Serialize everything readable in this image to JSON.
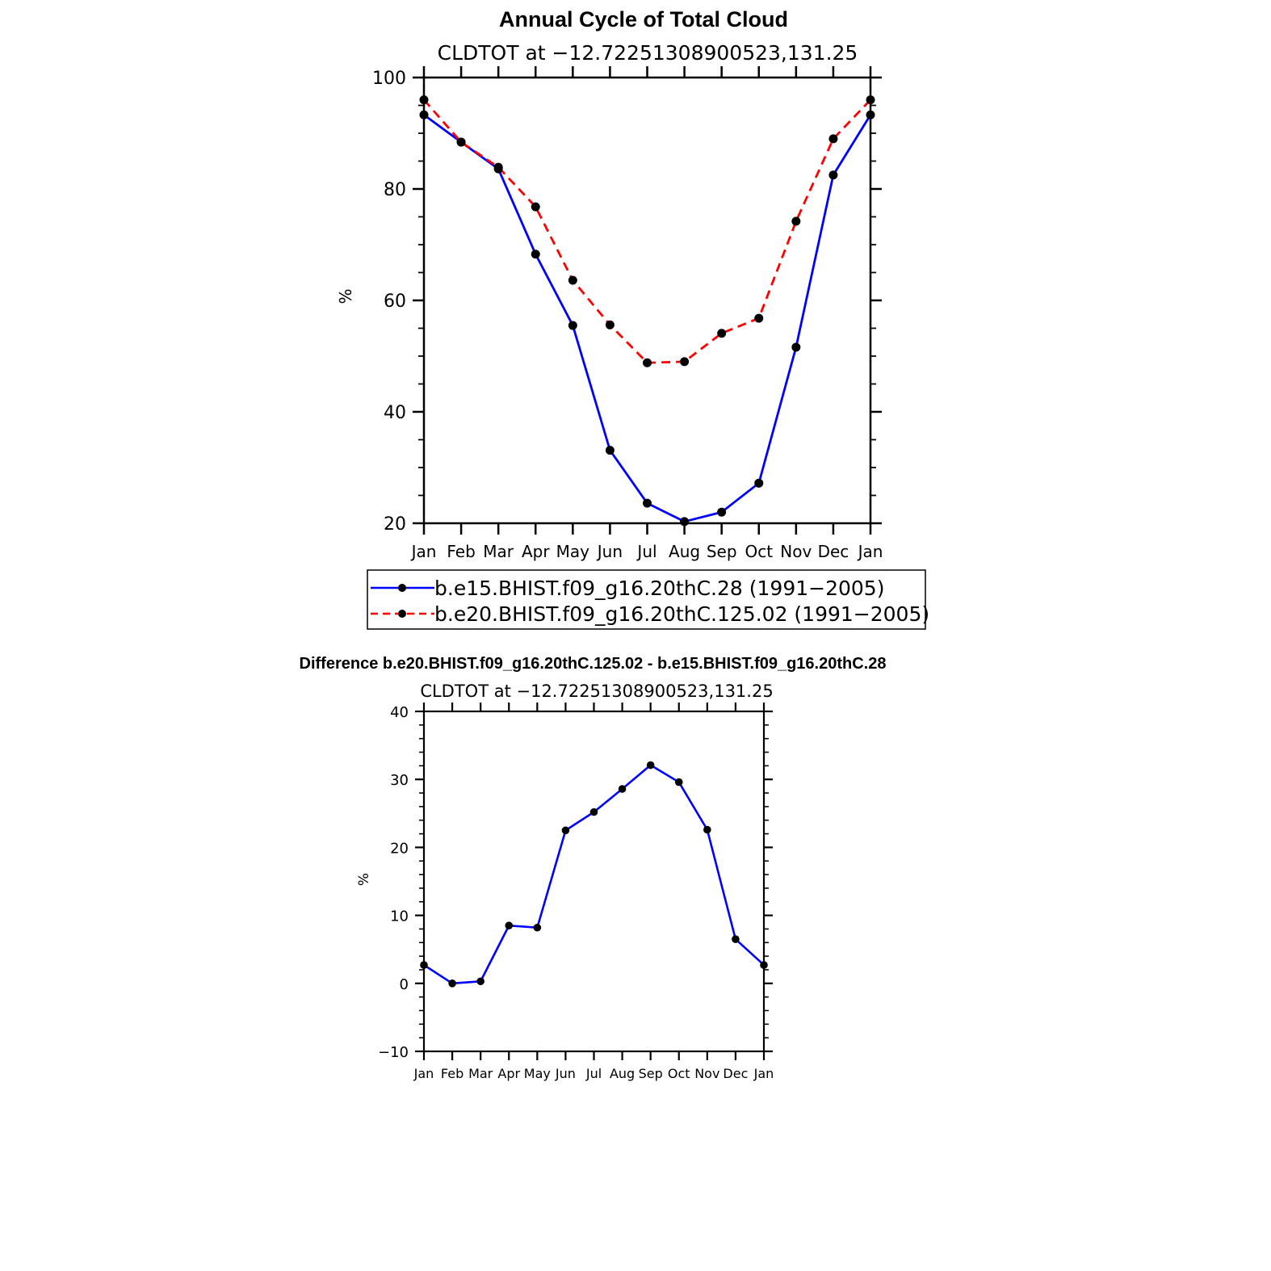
{
  "chart_data": [
    {
      "type": "line",
      "title": "Annual Cycle of Total Cloud",
      "subtitle": "CLDTOT at −12.72251308900523,131.25",
      "ylabel": "%",
      "ylim": [
        20,
        100
      ],
      "yticks": [
        "100",
        "80",
        "60",
        "40",
        "20"
      ],
      "categories": [
        "Jan",
        "Feb",
        "Mar",
        "Apr",
        "May",
        "Jun",
        "Jul",
        "Aug",
        "Sep",
        "Oct",
        "Nov",
        "Dec",
        "Jan"
      ],
      "series": [
        {
          "name": "b.e15.BHIST.f09_g16.20thC.28 (1991−2005)",
          "color": "#0000ff",
          "dash": "solid",
          "values": [
            93.3,
            88.4,
            83.6,
            68.3,
            55.5,
            33.1,
            23.6,
            20.3,
            22.0,
            27.2,
            51.6,
            82.5,
            93.3
          ]
        },
        {
          "name": "b.e20.BHIST.f09_g16.20thC.125.02 (1991−2005)",
          "color": "#ff0000",
          "dash": "dashed",
          "values": [
            96.0,
            88.4,
            83.9,
            76.8,
            63.6,
            55.6,
            48.8,
            49.0,
            54.1,
            56.8,
            74.2,
            89.0,
            96.0
          ]
        }
      ]
    },
    {
      "type": "line",
      "title": "Difference b.e20.BHIST.f09_g16.20thC.125.02 - b.e15.BHIST.f09_g16.20thC.28",
      "subtitle": "CLDTOT at −12.72251308900523,131.25",
      "ylabel": "%",
      "ylim": [
        -10,
        40
      ],
      "yticks": [
        "40",
        "30",
        "20",
        "10",
        "0",
        "−10"
      ],
      "categories": [
        "Jan",
        "Feb",
        "Mar",
        "Apr",
        "May",
        "Jun",
        "Jul",
        "Aug",
        "Sep",
        "Oct",
        "Nov",
        "Dec",
        "Jan"
      ],
      "series": [
        {
          "color": "#0000ff",
          "dash": "solid",
          "values": [
            2.7,
            0.0,
            0.3,
            8.5,
            8.2,
            22.5,
            25.2,
            28.6,
            32.1,
            29.6,
            22.6,
            6.5,
            2.7
          ]
        }
      ]
    }
  ]
}
